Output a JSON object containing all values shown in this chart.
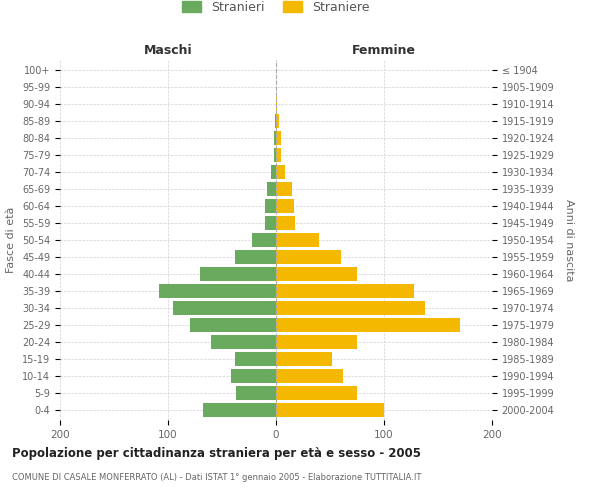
{
  "age_groups": [
    "0-4",
    "5-9",
    "10-14",
    "15-19",
    "20-24",
    "25-29",
    "30-34",
    "35-39",
    "40-44",
    "45-49",
    "50-54",
    "55-59",
    "60-64",
    "65-69",
    "70-74",
    "75-79",
    "80-84",
    "85-89",
    "90-94",
    "95-99",
    "100+"
  ],
  "birth_years": [
    "2000-2004",
    "1995-1999",
    "1990-1994",
    "1985-1989",
    "1980-1984",
    "1975-1979",
    "1970-1974",
    "1965-1969",
    "1960-1964",
    "1955-1959",
    "1950-1954",
    "1945-1949",
    "1940-1944",
    "1935-1939",
    "1930-1934",
    "1925-1929",
    "1920-1924",
    "1915-1919",
    "1910-1914",
    "1905-1909",
    "≤ 1904"
  ],
  "males": [
    68,
    37,
    42,
    38,
    60,
    80,
    95,
    108,
    70,
    38,
    22,
    10,
    10,
    8,
    5,
    2,
    2,
    1,
    0,
    0,
    0
  ],
  "females": [
    100,
    75,
    62,
    52,
    75,
    170,
    138,
    128,
    75,
    60,
    40,
    18,
    17,
    15,
    8,
    5,
    5,
    3,
    1,
    0,
    0
  ],
  "male_color": "#6aaa5e",
  "female_color": "#f5b800",
  "background_color": "#ffffff",
  "grid_color": "#cccccc",
  "title": "Popolazione per cittadinanza straniera per età e sesso - 2005",
  "subtitle": "COMUNE DI CASALE MONFERRATO (AL) - Dati ISTAT 1° gennaio 2005 - Elaborazione TUTTITALIA.IT",
  "xlabel_left": "Maschi",
  "xlabel_right": "Femmine",
  "ylabel_left": "Fasce di età",
  "ylabel_right": "Anni di nascita",
  "legend_male": "Stranieri",
  "legend_female": "Straniere",
  "xlim": 200,
  "xticks": [
    -200,
    -100,
    0,
    100,
    200
  ],
  "xticklabels": [
    "200",
    "100",
    "0",
    "100",
    "200"
  ]
}
